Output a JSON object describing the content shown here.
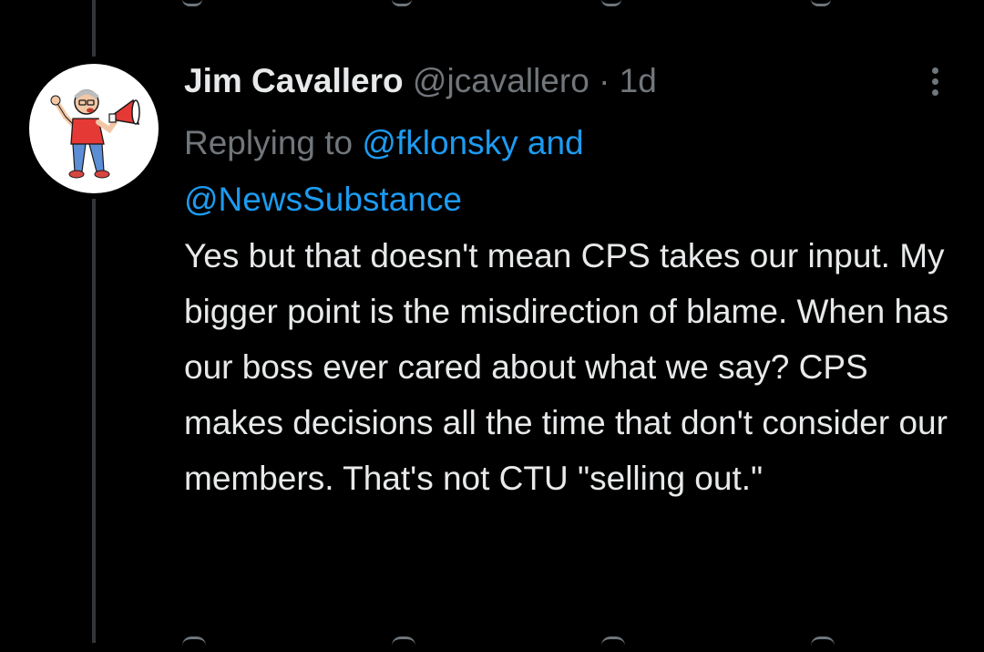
{
  "tweet": {
    "display_name": "Jim Cavallero",
    "handle": "@jcavallero",
    "separator": "·",
    "age": "1d",
    "replying_prefix": "Replying to",
    "mention_1": "@fklonsky",
    "and_word": "and",
    "mention_2": "@NewsSubstance",
    "text": "Yes but that doesn't mean CPS takes our input. My bigger point is the misdirection of blame. When has our boss ever cared about what we say? CPS makes decisions all the time that don't consider our members. That's not CTU \"selling out.\""
  },
  "icons": {
    "more": "more-vertical-icon",
    "avatar": "megaphone-person-avatar"
  },
  "colors": {
    "background": "#000000",
    "primary_text": "#e7e9ea",
    "secondary_text": "#71767b",
    "accent": "#1d9bf0",
    "thread_line": "#333639"
  }
}
